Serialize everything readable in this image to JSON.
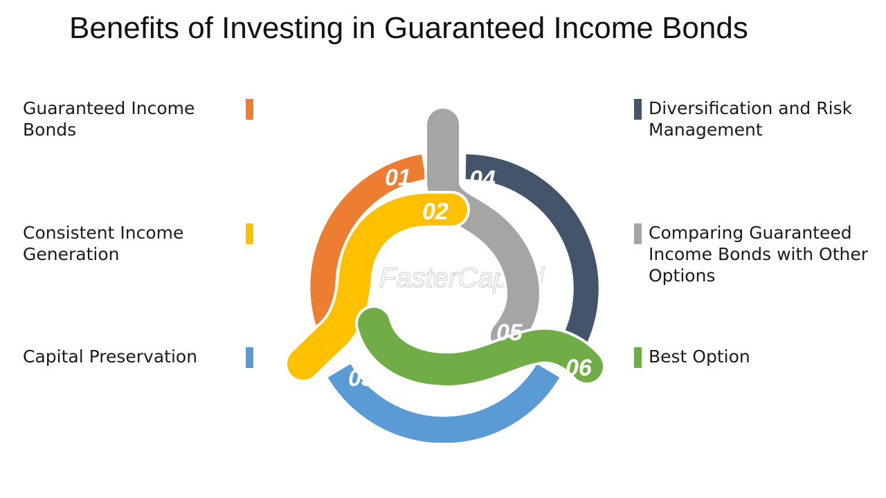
{
  "title": "Benefits of Investing in Guaranteed Income Bonds",
  "watermark": "FasterCapital",
  "items": [
    {
      "num": "01",
      "label": "Guaranteed Income Bonds",
      "color": "#ED7D31"
    },
    {
      "num": "02",
      "label": "Consistent Income Generation",
      "color": "#FFC000"
    },
    {
      "num": "03",
      "label": "Capital Preservation",
      "color": "#5B9BD5"
    },
    {
      "num": "04",
      "label": "Diversification and Risk Management",
      "color": "#44546A"
    },
    {
      "num": "05",
      "label": "Comparing Guaranteed Income Bonds with Other Options",
      "color": "#A5A5A5"
    },
    {
      "num": "06",
      "label": "Best Option",
      "color": "#70AD47"
    }
  ]
}
